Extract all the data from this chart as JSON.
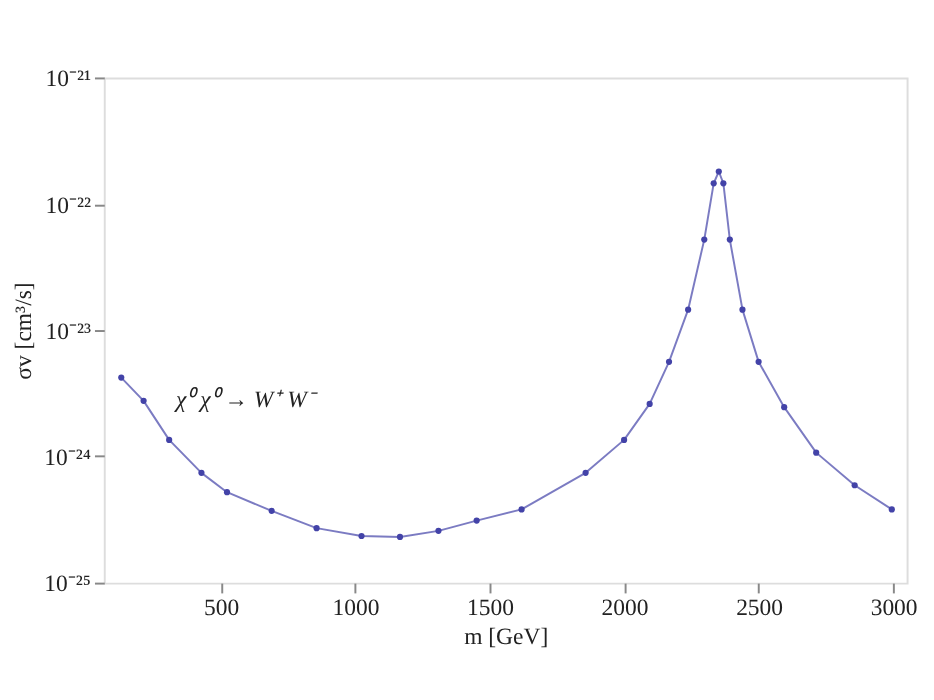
{
  "chart_data": {
    "type": "line",
    "xlabel": "m [GeV]",
    "ylabel": "σv [cm³/s]",
    "log": "y",
    "grid": false,
    "marker": "circle",
    "line_style": "solid",
    "legend": false,
    "xlim": [
      66,
      3050
    ],
    "xticks": [
      500,
      1000,
      1500,
      2000,
      2500,
      3000
    ],
    "ylim": [
      1e-25,
      1e-21
    ],
    "yticks": [
      {
        "value": 1e-25,
        "label": "10⁻²⁵"
      },
      {
        "value": 1e-24,
        "label": "10⁻²⁴"
      },
      {
        "value": 1e-23,
        "label": "10⁻²³"
      },
      {
        "value": 1e-22,
        "label": "10⁻²²"
      },
      {
        "value": 1e-21,
        "label": "10⁻²¹"
      }
    ],
    "series": [
      {
        "name": "χ⁰ χ⁰ → W⁺ W⁻",
        "color": "#4343a8",
        "x": [
          131,
          214,
          309,
          429,
          524,
          690,
          857,
          1024,
          1167,
          1310,
          1452,
          1619,
          1857,
          2000,
          2095,
          2167,
          2238,
          2298,
          2333,
          2352,
          2369,
          2393,
          2440,
          2500,
          2595,
          2714,
          2857,
          2995
        ],
        "values": [
          4.2e-24,
          2.75e-24,
          1.35e-24,
          7.4e-25,
          5.2e-25,
          3.7e-25,
          2.7e-25,
          2.34e-25,
          2.3e-25,
          2.57e-25,
          3.1e-25,
          3.8e-25,
          7.4e-25,
          1.35e-24,
          2.6e-24,
          5.6e-24,
          1.45e-23,
          5.2e-23,
          1.45e-22,
          1.8e-22,
          1.45e-22,
          5.2e-23,
          1.45e-23,
          5.6e-24,
          2.45e-24,
          1.07e-24,
          5.9e-25,
          3.8e-25
        ]
      }
    ]
  }
}
